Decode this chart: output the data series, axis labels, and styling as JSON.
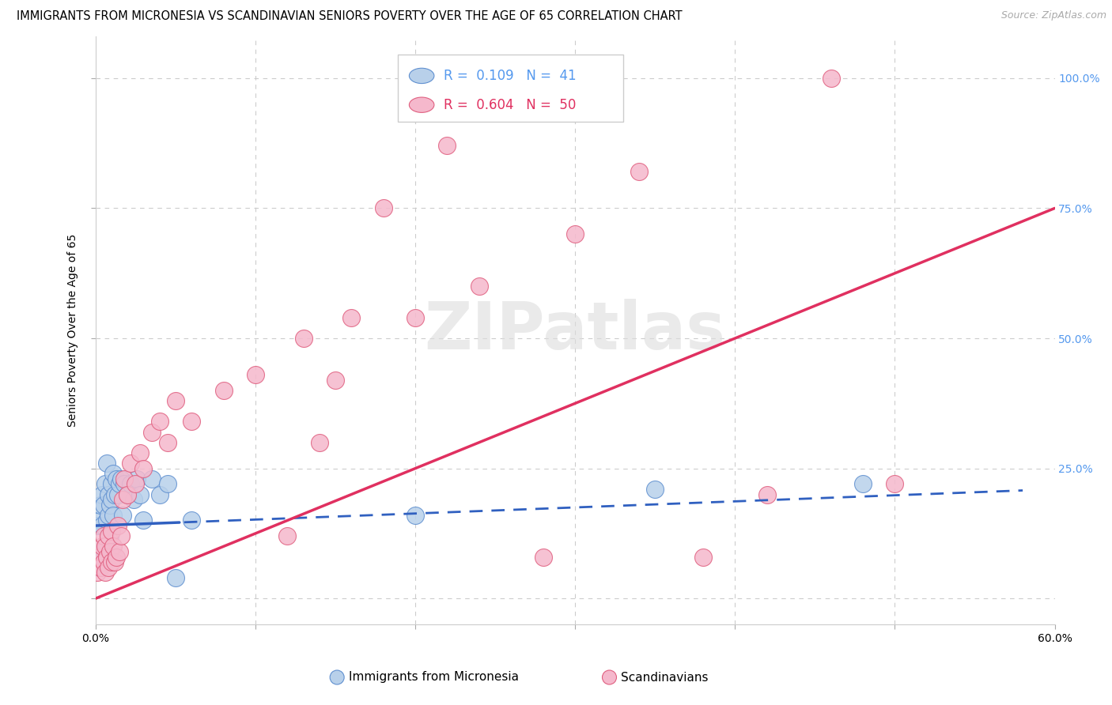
{
  "title": "IMMIGRANTS FROM MICRONESIA VS SCANDINAVIAN SENIORS POVERTY OVER THE AGE OF 65 CORRELATION CHART",
  "source": "Source: ZipAtlas.com",
  "ylabel": "Seniors Poverty Over the Age of 65",
  "xlim": [
    0.0,
    0.6
  ],
  "ylim": [
    -0.05,
    1.08
  ],
  "legend_blue_r": "0.109",
  "legend_blue_n": "41",
  "legend_pink_r": "0.604",
  "legend_pink_n": "50",
  "blue_scatter_color": "#b8d0ea",
  "blue_edge_color": "#6090d0",
  "pink_scatter_color": "#f5b8cc",
  "pink_edge_color": "#e06080",
  "blue_line_color": "#3060c0",
  "pink_line_color": "#e03060",
  "watermark": "ZIPatlas",
  "blue_scatter_x": [
    0.001,
    0.002,
    0.003,
    0.003,
    0.004,
    0.004,
    0.005,
    0.005,
    0.006,
    0.006,
    0.007,
    0.007,
    0.008,
    0.008,
    0.009,
    0.009,
    0.01,
    0.01,
    0.011,
    0.011,
    0.012,
    0.013,
    0.014,
    0.015,
    0.016,
    0.017,
    0.018,
    0.02,
    0.022,
    0.024,
    0.026,
    0.028,
    0.03,
    0.035,
    0.04,
    0.045,
    0.05,
    0.06,
    0.2,
    0.35,
    0.48
  ],
  "blue_scatter_y": [
    0.14,
    0.06,
    0.15,
    0.18,
    0.14,
    0.2,
    0.08,
    0.18,
    0.1,
    0.22,
    0.15,
    0.26,
    0.16,
    0.2,
    0.12,
    0.18,
    0.19,
    0.22,
    0.16,
    0.24,
    0.2,
    0.23,
    0.2,
    0.22,
    0.23,
    0.16,
    0.22,
    0.2,
    0.22,
    0.19,
    0.23,
    0.2,
    0.15,
    0.23,
    0.2,
    0.22,
    0.04,
    0.15,
    0.16,
    0.21,
    0.22
  ],
  "pink_scatter_x": [
    0.001,
    0.002,
    0.003,
    0.004,
    0.005,
    0.005,
    0.006,
    0.006,
    0.007,
    0.008,
    0.008,
    0.009,
    0.01,
    0.01,
    0.011,
    0.012,
    0.013,
    0.014,
    0.015,
    0.016,
    0.017,
    0.018,
    0.02,
    0.022,
    0.025,
    0.028,
    0.03,
    0.035,
    0.04,
    0.045,
    0.05,
    0.06,
    0.08,
    0.1,
    0.12,
    0.13,
    0.14,
    0.15,
    0.16,
    0.18,
    0.2,
    0.22,
    0.24,
    0.28,
    0.3,
    0.34,
    0.38,
    0.42,
    0.46,
    0.5
  ],
  "pink_scatter_y": [
    0.05,
    0.08,
    0.06,
    0.1,
    0.07,
    0.12,
    0.05,
    0.1,
    0.08,
    0.06,
    0.12,
    0.09,
    0.07,
    0.13,
    0.1,
    0.07,
    0.08,
    0.14,
    0.09,
    0.12,
    0.19,
    0.23,
    0.2,
    0.26,
    0.22,
    0.28,
    0.25,
    0.32,
    0.34,
    0.3,
    0.38,
    0.34,
    0.4,
    0.43,
    0.12,
    0.5,
    0.3,
    0.42,
    0.54,
    0.75,
    0.54,
    0.87,
    0.6,
    0.08,
    0.7,
    0.82,
    0.08,
    0.2,
    1.0,
    0.22
  ],
  "grid_color": "#cccccc",
  "bg_color": "#ffffff",
  "title_fontsize": 10.5,
  "tick_fontsize": 10,
  "axis_label_fontsize": 10
}
